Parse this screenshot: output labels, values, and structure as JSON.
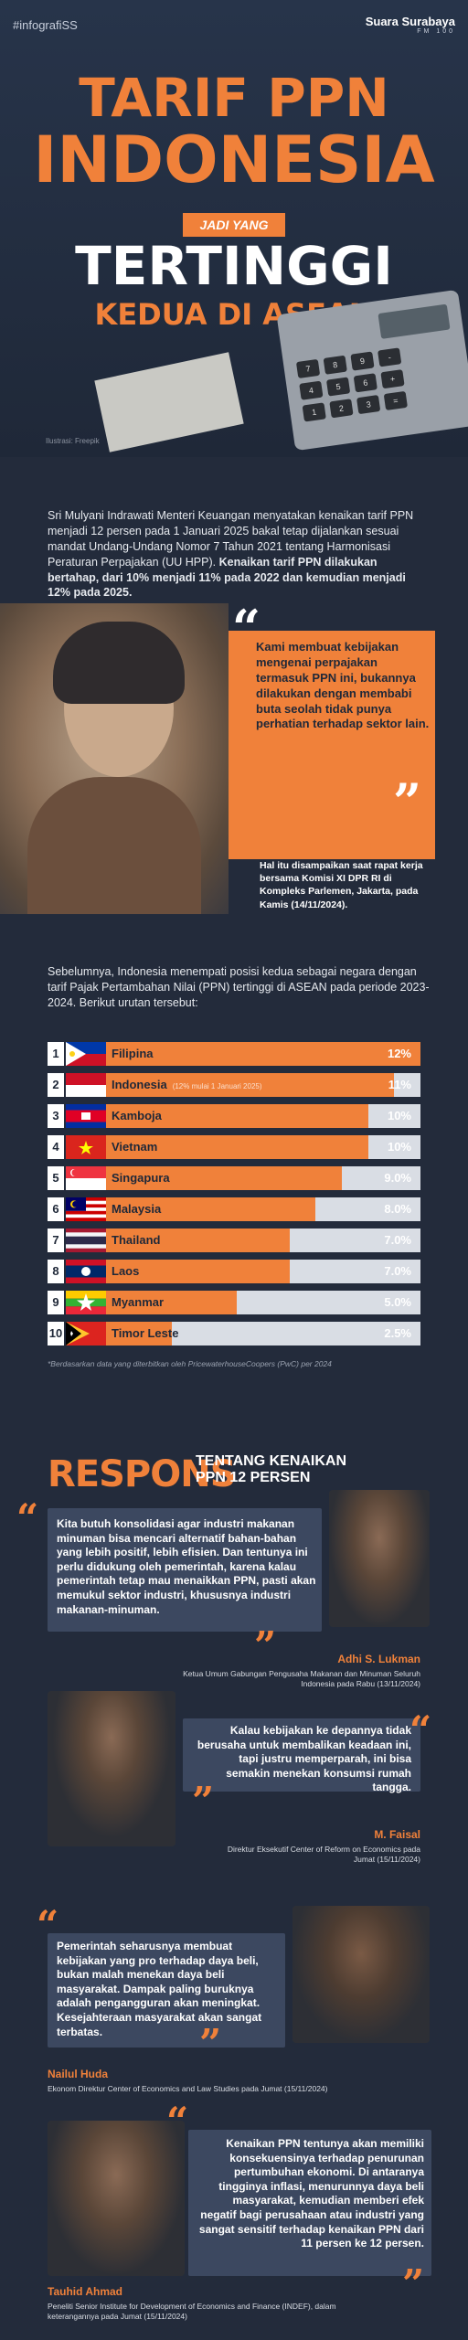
{
  "header": {
    "tag": "#infografiSS",
    "brand": "Suara Surabaya",
    "brand_sub": "FM 100",
    "title_line1": "TARIF PPN",
    "title_line2": "INDONESIA",
    "title_connector": "JADI YANG",
    "title_line3": "TERTINGGI",
    "title_line4": "KEDUA DI ASEAN",
    "photo_credit": "Ilustrasi: Freepik"
  },
  "intro": {
    "text_plain": "Sri Mulyani Indrawati Menteri Keuangan menyatakan kenaikan tarif PPN menjadi 12 persen pada 1 Januari 2025 bakal tetap dijalankan sesuai mandat Undang-Undang Nomor 7 Tahun 2021 tentang Harmonisasi Peraturan Perpajakan (UU HPP).",
    "text_bold": "Kenaikan tarif PPN dilakukan bertahap, dari 10% menjadi 11% pada 2022 dan kemudian menjadi 12% pada 2025."
  },
  "quote_main": {
    "text": "Kami membuat kebijakan mengenai perpajakan termasuk PPN ini, bukannya dilakukan dengan membabi buta seolah tidak punya perhatian terhadap sektor lain.",
    "note": "Hal itu disampaikan saat rapat kerja bersama Komisi XI DPR RI di Kompleks Parlemen, Jakarta, pada Kamis (14/11/2024)."
  },
  "ranking": {
    "intro": "Sebelumnya, Indonesia menempati posisi kedua sebagai negara dengan tarif Pajak Pertambahan Nilai (PPN) tertinggi di ASEAN pada periode 2023-2024. Berikut urutan tersebut:",
    "footnote": "*Berdasarkan data yang diterbitkan oleh PricewaterhouseCoopers (PwC) per 2024",
    "rows": [
      {
        "rank": "1",
        "country": "Filipina",
        "value": "12%",
        "flag": "philippines-flag",
        "note": ""
      },
      {
        "rank": "2",
        "country": "Indonesia",
        "value": "11%",
        "flag": "indonesia-flag",
        "note": "(12% mulai 1 Januari 2025)"
      },
      {
        "rank": "3",
        "country": "Kamboja",
        "value": "10%",
        "flag": "cambodia-flag",
        "note": ""
      },
      {
        "rank": "4",
        "country": "Vietnam",
        "value": "10%",
        "flag": "vietnam-flag",
        "note": ""
      },
      {
        "rank": "5",
        "country": "Singapura",
        "value": "9.0%",
        "flag": "singapore-flag",
        "note": ""
      },
      {
        "rank": "6",
        "country": "Malaysia",
        "value": "8.0%",
        "flag": "malaysia-flag",
        "note": ""
      },
      {
        "rank": "7",
        "country": "Thailand",
        "value": "7.0%",
        "flag": "thailand-flag",
        "note": ""
      },
      {
        "rank": "8",
        "country": "Laos",
        "value": "7.0%",
        "flag": "laos-flag",
        "note": ""
      },
      {
        "rank": "9",
        "country": "Myanmar",
        "value": "5.0%",
        "flag": "myanmar-flag",
        "note": ""
      },
      {
        "rank": "10",
        "country": "Timor Leste",
        "value": "2.5%",
        "flag": "timor-leste-flag",
        "note": ""
      }
    ],
    "colors": {
      "bar": "#f0813a",
      "track": "#d9dde4",
      "label": "#1f2838"
    }
  },
  "respons": {
    "title": "RESPONS",
    "subtitle_line1": "TENTANG KENAIKAN",
    "subtitle_line2": "PPN 12 PERSEN",
    "people": [
      {
        "quote": "Kita butuh konsolidasi agar industri makanan minuman bisa mencari alternatif bahan-bahan yang lebih positif, lebih efisien. Dan tentunya ini perlu didukung oleh pemerintah, karena kalau pemerintah tetap mau menaikkan PPN, pasti akan memukul sektor industri, khususnya industri makanan-minuman.",
        "name": "Adhi S. Lukman",
        "role": "Ketua Umum Gabungan Pengusaha Makanan dan Minuman Seluruh Indonesia pada Rabu (13/11/2024)"
      },
      {
        "quote": "Kalau kebijakan ke depannya tidak berusaha untuk membalikan keadaan ini, tapi justru memperparah, ini bisa semakin menekan konsumsi rumah tangga.",
        "name": "M. Faisal",
        "role": "Direktur Eksekutif Center of Reform on Economics pada Jumat (15/11/2024)"
      },
      {
        "quote": "Pemerintah seharusnya membuat kebijakan yang pro terhadap daya beli, bukan malah menekan daya beli masyarakat. Dampak paling buruknya adalah pengangguran akan meningkat. Kesejahteraan masyarakat akan sangat terbatas.",
        "name": "Nailul Huda",
        "role": "Ekonom Direktur Center of Economics and Law Studies pada Jumat (15/11/2024)"
      },
      {
        "quote": "Kenaikan PPN tentunya akan memiliki konsekuensinya terhadap penurunan pertumbuhan ekonomi. Di antaranya tingginya inflasi, menurunnya daya beli masyarakat, kemudian memberi efek negatif bagi perusahaan atau industri yang sangat sensitif terhadap kenaikan PPN dari 11 persen ke 12 persen.",
        "name": "Tauhid Ahmad",
        "role": "Peneliti Senior Institute for Development of Economics and Finance (INDEF), dalam keterangannya pada Jumat (15/11/2024)"
      }
    ]
  }
}
